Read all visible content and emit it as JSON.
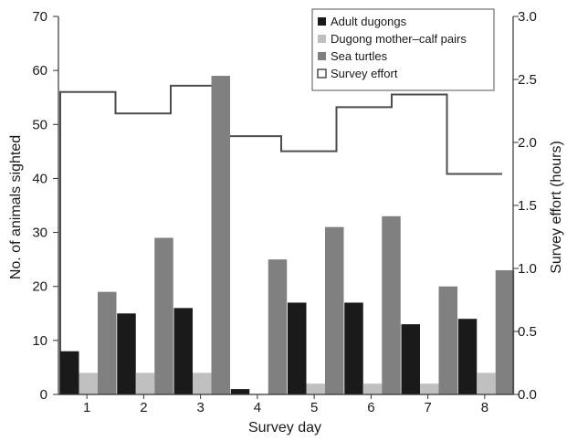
{
  "chart_data": {
    "type": "bar",
    "xlabel": "Survey day",
    "ylabel_left": "No. of animals sighted",
    "ylabel_right": "Survey effort (hours)",
    "categories": [
      "1",
      "2",
      "3",
      "4",
      "5",
      "6",
      "7",
      "8"
    ],
    "ylim_left": [
      0,
      70
    ],
    "yticks_left": [
      "0",
      "10",
      "20",
      "30",
      "40",
      "50",
      "60",
      "70"
    ],
    "ylim_right": [
      0,
      3.0
    ],
    "yticks_right": [
      "0.0",
      "0.5",
      "1.0",
      "1.5",
      "2.0",
      "2.5",
      "3.0"
    ],
    "grid": false,
    "legend_position": "top-right",
    "series": [
      {
        "name": "Adult dugongs",
        "axis": "left",
        "color": "#1a1a1a",
        "values": [
          8,
          15,
          16,
          1,
          17,
          17,
          13,
          14
        ]
      },
      {
        "name": "Dugong mother–calf pairs",
        "axis": "left",
        "color": "#c0c0c0",
        "values": [
          4,
          4,
          4,
          0,
          2,
          2,
          2,
          4
        ]
      },
      {
        "name": "Sea turtles",
        "axis": "left",
        "color": "#808080",
        "values": [
          19,
          29,
          59,
          25,
          31,
          33,
          20,
          23
        ]
      },
      {
        "name": "Survey effort",
        "axis": "right",
        "style": "step-outline",
        "color": "#4d4d4d",
        "values": [
          2.4,
          2.23,
          2.45,
          2.05,
          1.93,
          2.28,
          2.38,
          1.75
        ]
      }
    ]
  }
}
